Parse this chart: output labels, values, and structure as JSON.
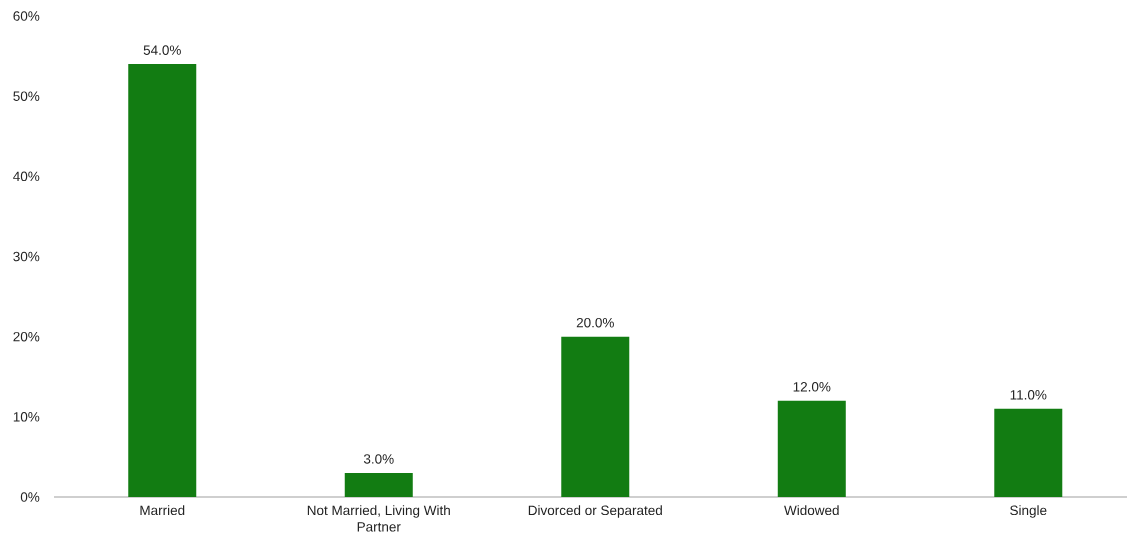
{
  "chart_data": {
    "type": "bar",
    "categories": [
      "Married",
      "Not Married, Living With Partner",
      "Divorced or Separated",
      "Widowed",
      "Single"
    ],
    "values": [
      54,
      3,
      20,
      12,
      11
    ],
    "value_labels": [
      "54.0%",
      "3.0%",
      "20.0%",
      "12.0%",
      "11.0%"
    ],
    "color": "#127c12",
    "ylim": [
      0,
      60
    ],
    "yticks": [
      {
        "value": 0,
        "label": "0%"
      },
      {
        "value": 10,
        "label": "10%"
      },
      {
        "value": 20,
        "label": "20%"
      },
      {
        "value": 30,
        "label": "30%"
      },
      {
        "value": 40,
        "label": "40%"
      },
      {
        "value": 50,
        "label": "50%"
      },
      {
        "value": 60,
        "label": "60%"
      }
    ]
  }
}
